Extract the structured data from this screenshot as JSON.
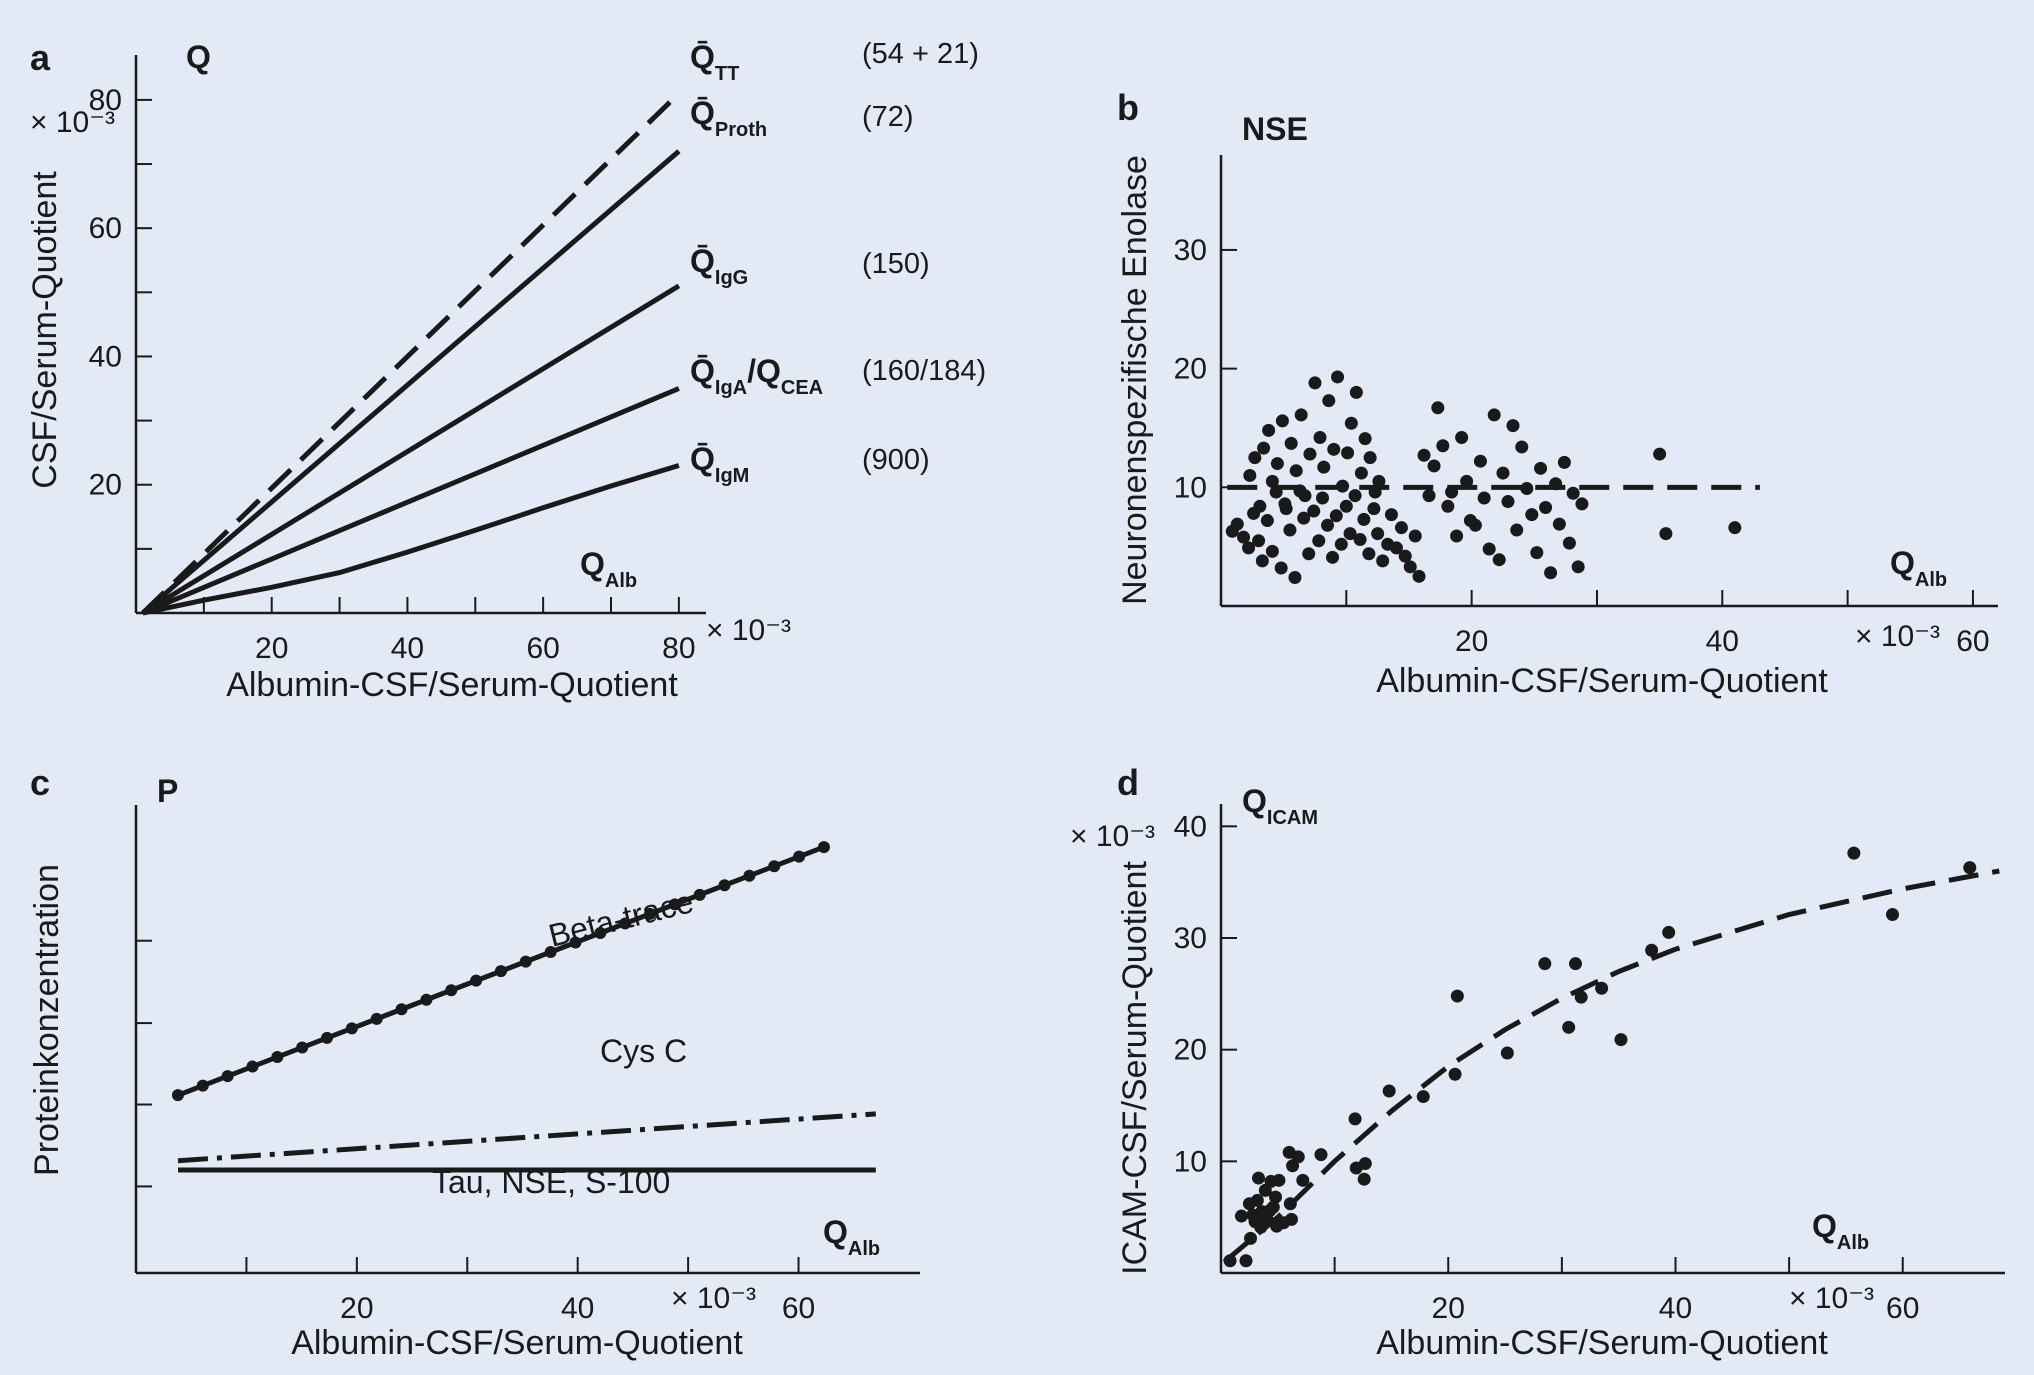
{
  "colors": {
    "background": "#e4e9f6",
    "ink": "#1a1a1a"
  },
  "chart_data": [
    {
      "panel": "a",
      "type": "line",
      "title": "Q",
      "xlabel": "Albumin-CSF/Serum-Quotient",
      "ylabel": "CSF/Serum-Quotient",
      "x_unit": "× 10⁻³",
      "y_unit": "× 10⁻³",
      "x_ticks": [
        "20",
        "40",
        "60",
        "80"
      ],
      "y_ticks": [
        "20",
        "40",
        "60",
        "80"
      ],
      "xlim": [
        0,
        84
      ],
      "ylim": [
        0,
        87
      ],
      "axis_symbol": {
        "main": "Q",
        "sub": "Alb"
      },
      "series": [
        {
          "name": "Q̄TT",
          "symbol": "Q̄",
          "sub": "TT",
          "note": "(54 + 21)",
          "style": "dashed",
          "x": [
            1,
            80
          ],
          "y": [
            0,
            81
          ]
        },
        {
          "name": "Q̄Proth",
          "symbol": "Q̄",
          "sub": "Proth",
          "note": "(72)",
          "style": "solid",
          "x": [
            1,
            80
          ],
          "y": [
            0,
            72
          ]
        },
        {
          "name": "Q̄IgG",
          "symbol": "Q̄",
          "sub": "IgG",
          "note": "(150)",
          "style": "solid",
          "x": [
            1,
            80
          ],
          "y": [
            0,
            51
          ]
        },
        {
          "name": "Q̄IgA/QCEA",
          "symbol": "Q̄",
          "sub": "IgA",
          "extra": "/Q",
          "extra_sub": "CEA",
          "note": "(160/184)",
          "style": "solid",
          "x": [
            1,
            80
          ],
          "y": [
            0,
            35
          ]
        },
        {
          "name": "Q̄IgM",
          "symbol": "Q̄",
          "sub": "IgM",
          "note": "(900)",
          "style": "solid",
          "x": [
            1,
            10,
            20,
            30,
            40,
            50,
            60,
            70,
            80
          ],
          "y": [
            0,
            2,
            4,
            6.3,
            9.5,
            12.9,
            16.4,
            19.8,
            23
          ]
        }
      ]
    },
    {
      "panel": "b",
      "type": "scatter",
      "title": "NSE",
      "xlabel": "Albumin-CSF/Serum-Quotient",
      "ylabel": "Neuronenspezifische Enolase",
      "x_unit": "× 10⁻³",
      "x_ticks": [
        "20",
        "40",
        "60"
      ],
      "y_ticks": [
        "10",
        "20",
        "30"
      ],
      "xlim": [
        0,
        62
      ],
      "ylim": [
        0,
        38
      ],
      "axis_symbol": {
        "main": "Q",
        "sub": "Alb"
      },
      "reference_line": {
        "style": "dashed",
        "y": 10,
        "x": [
          0.5,
          43
        ]
      },
      "points": [
        [
          0.9,
          6.3
        ],
        [
          1.3,
          6.9
        ],
        [
          1.8,
          5.8
        ],
        [
          2.3,
          11
        ],
        [
          2.7,
          12.5
        ],
        [
          3.1,
          8.4
        ],
        [
          3.4,
          13.3
        ],
        [
          3.8,
          14.8
        ],
        [
          4.1,
          10.5
        ],
        [
          4.5,
          12
        ],
        [
          4.9,
          15.6
        ],
        [
          5.2,
          8.2
        ],
        [
          5.6,
          13.7
        ],
        [
          6,
          11.4
        ],
        [
          6.4,
          16.1
        ],
        [
          6.7,
          9.3
        ],
        [
          7.1,
          12.8
        ],
        [
          7.5,
          18.8
        ],
        [
          7.9,
          14.2
        ],
        [
          8.2,
          11.7
        ],
        [
          8.6,
          17.3
        ],
        [
          9,
          13.2
        ],
        [
          9.3,
          19.3
        ],
        [
          9.7,
          10.1
        ],
        [
          10.1,
          12.9
        ],
        [
          10.4,
          15.4
        ],
        [
          10.8,
          18
        ],
        [
          11.2,
          11.2
        ],
        [
          11.5,
          14.1
        ],
        [
          11.9,
          12.5
        ],
        [
          12.3,
          9.6
        ],
        [
          12.6,
          10.5
        ],
        [
          2.2,
          4.9
        ],
        [
          2.6,
          7.8
        ],
        [
          3,
          5.5
        ],
        [
          3.3,
          3.8
        ],
        [
          3.7,
          7.2
        ],
        [
          4.1,
          4.6
        ],
        [
          4.4,
          9.6
        ],
        [
          4.8,
          3.2
        ],
        [
          5.1,
          8.6
        ],
        [
          5.5,
          6.4
        ],
        [
          5.9,
          2.4
        ],
        [
          6.3,
          9.7
        ],
        [
          6.6,
          7.4
        ],
        [
          7,
          4.4
        ],
        [
          7.4,
          8
        ],
        [
          7.8,
          5.5
        ],
        [
          8.1,
          9.1
        ],
        [
          8.5,
          6.8
        ],
        [
          8.9,
          4.1
        ],
        [
          9.2,
          7.6
        ],
        [
          9.6,
          5.2
        ],
        [
          10,
          8.4
        ],
        [
          10.3,
          6.1
        ],
        [
          10.7,
          9.3
        ],
        [
          11.1,
          5.6
        ],
        [
          11.4,
          7.3
        ],
        [
          11.8,
          4.4
        ],
        [
          12.2,
          8.2
        ],
        [
          12.5,
          6.1
        ],
        [
          12.9,
          3.8
        ],
        [
          13.3,
          5.2
        ],
        [
          13.6,
          7.7
        ],
        [
          14,
          4.9
        ],
        [
          14.4,
          6.6
        ],
        [
          14.7,
          4.2
        ],
        [
          15.1,
          3.3
        ],
        [
          15.5,
          5.9
        ],
        [
          15.8,
          2.5
        ],
        [
          16.2,
          12.7
        ],
        [
          16.6,
          9.3
        ],
        [
          17,
          11.8
        ],
        [
          17.3,
          16.7
        ],
        [
          17.7,
          13.5
        ],
        [
          18.1,
          8.4
        ],
        [
          18.4,
          9.6
        ],
        [
          18.8,
          5.9
        ],
        [
          19.2,
          14.2
        ],
        [
          19.6,
          10.5
        ],
        [
          19.9,
          7.2
        ],
        [
          20.3,
          6.8
        ],
        [
          20.7,
          12.2
        ],
        [
          21,
          9.1
        ],
        [
          21.4,
          4.8
        ],
        [
          21.8,
          16.1
        ],
        [
          22.2,
          3.9
        ],
        [
          22.5,
          11.2
        ],
        [
          22.9,
          8.8
        ],
        [
          23.3,
          15.2
        ],
        [
          23.6,
          6.4
        ],
        [
          24,
          13.4
        ],
        [
          24.4,
          9.9
        ],
        [
          24.8,
          7.7
        ],
        [
          25.2,
          4.5
        ],
        [
          25.5,
          11.6
        ],
        [
          25.9,
          8.3
        ],
        [
          26.3,
          2.8
        ],
        [
          26.7,
          10.3
        ],
        [
          27,
          6.9
        ],
        [
          27.4,
          12.1
        ],
        [
          27.8,
          5.3
        ],
        [
          28.1,
          9.5
        ],
        [
          28.5,
          3.3
        ],
        [
          28.8,
          8.6
        ],
        [
          35,
          12.8
        ],
        [
          35.5,
          6.1
        ],
        [
          41,
          6.6
        ]
      ]
    },
    {
      "panel": "c",
      "type": "line",
      "title": "P",
      "xlabel": "Albumin-CSF/Serum-Quotient",
      "ylabel": "Proteinkonzentration",
      "x_unit": "× 10⁻³",
      "x_ticks": [
        "20",
        "40",
        "60"
      ],
      "xlim": [
        0,
        71
      ],
      "ylim": [
        0,
        100
      ],
      "axis_symbol": {
        "main": "Q",
        "sub": "Alb"
      },
      "series": [
        {
          "name": "Beta-trace",
          "label": "Beta-trace",
          "style": "solid-dots",
          "x": [
            3.8,
            62.3
          ],
          "y": [
            38,
            91
          ]
        },
        {
          "name": "Cys C",
          "label": "Cys C",
          "style": "dashdot",
          "x": [
            3.8,
            67
          ],
          "y": [
            24,
            34
          ]
        },
        {
          "name": "Tau, NSE, S-100",
          "label": "Tau, NSE, S-100",
          "style": "solid",
          "x": [
            3.8,
            67
          ],
          "y": [
            22,
            22
          ]
        }
      ]
    },
    {
      "panel": "d",
      "type": "scatter",
      "title": "Q",
      "title_sub": "ICAM",
      "xlabel": "Albumin-CSF/Serum-Quotient",
      "ylabel": "ICAM-CSF/Serum-Quotient",
      "x_unit": "× 10⁻³",
      "y_unit": "× 10⁻³",
      "x_ticks": [
        "20",
        "40",
        "60"
      ],
      "y_ticks": [
        "10",
        "20",
        "30",
        "40"
      ],
      "xlim": [
        0,
        69
      ],
      "ylim": [
        0,
        42
      ],
      "axis_symbol": {
        "main": "Q",
        "sub": "Alb"
      },
      "fit_line": {
        "style": "dashed",
        "x": [
          0.3,
          5,
          10,
          15,
          20,
          25,
          30,
          35,
          40,
          50,
          60,
          68.5
        ],
        "y": [
          1,
          5,
          10,
          14.5,
          18.5,
          21.8,
          24.6,
          27,
          29,
          32.1,
          34.4,
          36
        ]
      },
      "points": [
        [
          0.8,
          1.1
        ],
        [
          1.8,
          5.1
        ],
        [
          2.2,
          1.1
        ],
        [
          2.5,
          6.2
        ],
        [
          2.6,
          3.1
        ],
        [
          2.8,
          5.2
        ],
        [
          3,
          4.6
        ],
        [
          3.2,
          6.5
        ],
        [
          3.3,
          8.5
        ],
        [
          3.5,
          4.1
        ],
        [
          3.6,
          5.5
        ],
        [
          3.8,
          4.5
        ],
        [
          3.9,
          7.4
        ],
        [
          4.1,
          4.7
        ],
        [
          4.3,
          5.6
        ],
        [
          4.4,
          8.2
        ],
        [
          4.6,
          5.9
        ],
        [
          4.8,
          6.8
        ],
        [
          4.9,
          4.2
        ],
        [
          5.1,
          8.3
        ],
        [
          5.5,
          4.5
        ],
        [
          6,
          10.8
        ],
        [
          6.1,
          6.2
        ],
        [
          6.2,
          4.8
        ],
        [
          6.3,
          9.6
        ],
        [
          6.8,
          10.4
        ],
        [
          7.2,
          8.3
        ],
        [
          8.8,
          10.6
        ],
        [
          11.8,
          13.8
        ],
        [
          11.9,
          9.4
        ],
        [
          12.6,
          8.4
        ],
        [
          12.7,
          9.8
        ],
        [
          14.8,
          16.3
        ],
        [
          17.8,
          15.8
        ],
        [
          20.6,
          17.8
        ],
        [
          20.8,
          24.8
        ],
        [
          25.2,
          19.7
        ],
        [
          28.5,
          27.7
        ],
        [
          30.6,
          22
        ],
        [
          31.2,
          27.7
        ],
        [
          31.7,
          24.7
        ],
        [
          33.5,
          25.5
        ],
        [
          35.2,
          20.9
        ],
        [
          37.9,
          28.9
        ],
        [
          39.4,
          30.5
        ],
        [
          55.7,
          37.6
        ],
        [
          59.1,
          32.1
        ],
        [
          65.9,
          36.3
        ]
      ]
    }
  ],
  "panels": {
    "a": {
      "label": "a"
    },
    "b": {
      "label": "b"
    },
    "c": {
      "label": "c"
    },
    "d": {
      "label": "d"
    }
  }
}
